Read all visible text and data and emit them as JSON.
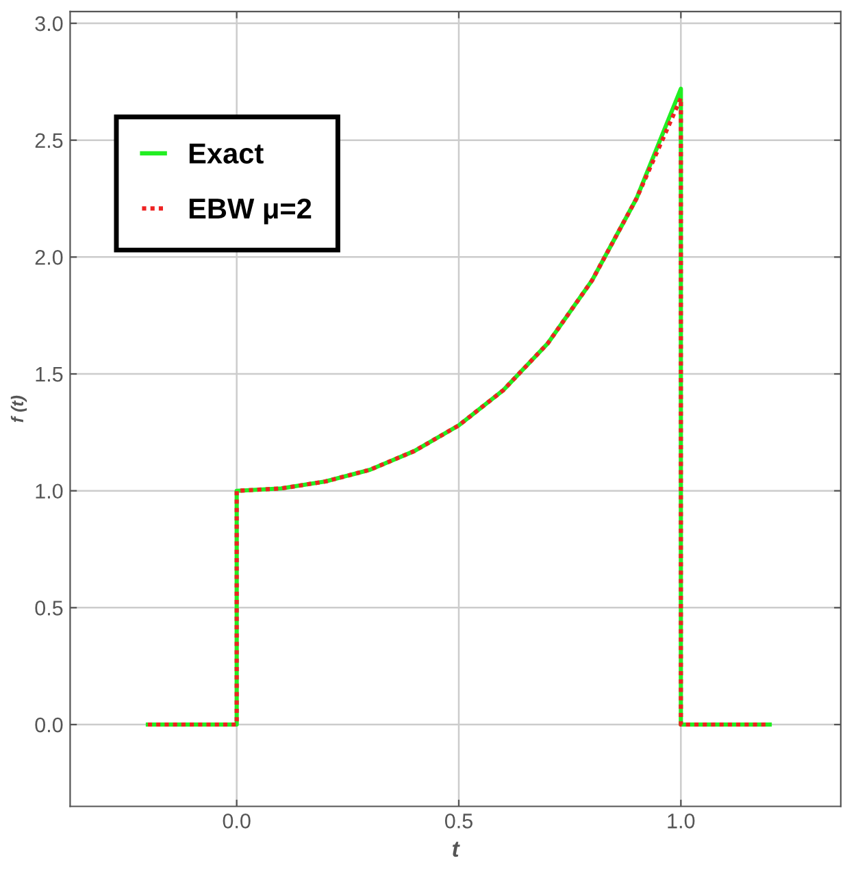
{
  "chart_data": {
    "type": "line",
    "xlabel": "t",
    "ylabel": "f (t)",
    "xlim": [
      -0.375,
      1.36
    ],
    "ylim": [
      -0.35,
      3.05
    ],
    "xticks": [
      {
        "value": 0,
        "label": "0.0"
      },
      0.5,
      {
        "value": 1,
        "label": "1.0"
      }
    ],
    "yticks": [
      {
        "value": 0,
        "label": "0.0"
      },
      0.5,
      {
        "value": 1,
        "label": "1.0"
      },
      1.5,
      {
        "value": 2,
        "label": "2.0"
      },
      2.5,
      {
        "value": 3,
        "label": "3.0"
      }
    ],
    "grid": true,
    "legend": "top left",
    "series": [
      {
        "name": "Exact",
        "color": "#22ee22",
        "line_style": "solid",
        "x": [
          -0.2,
          0,
          0,
          0.1,
          0.2,
          0.3,
          0.4,
          0.5,
          0.6,
          0.7,
          0.8,
          0.9,
          1.0,
          1.0,
          1.2
        ],
        "values": [
          0,
          0,
          1,
          1.01,
          1.04,
          1.09,
          1.17,
          1.28,
          1.43,
          1.63,
          1.9,
          2.25,
          2.72,
          0,
          0
        ]
      },
      {
        "name": "EBW μ=2",
        "color": "#ee2222",
        "line_style": "dotted",
        "x": [
          -0.2,
          0,
          0,
          0.1,
          0.2,
          0.3,
          0.4,
          0.5,
          0.6,
          0.7,
          0.8,
          0.9,
          1.0,
          1.0,
          1.2
        ],
        "values": [
          0,
          0,
          1,
          1.01,
          1.04,
          1.09,
          1.17,
          1.28,
          1.43,
          1.63,
          1.9,
          2.25,
          2.68,
          0,
          0
        ]
      }
    ]
  }
}
